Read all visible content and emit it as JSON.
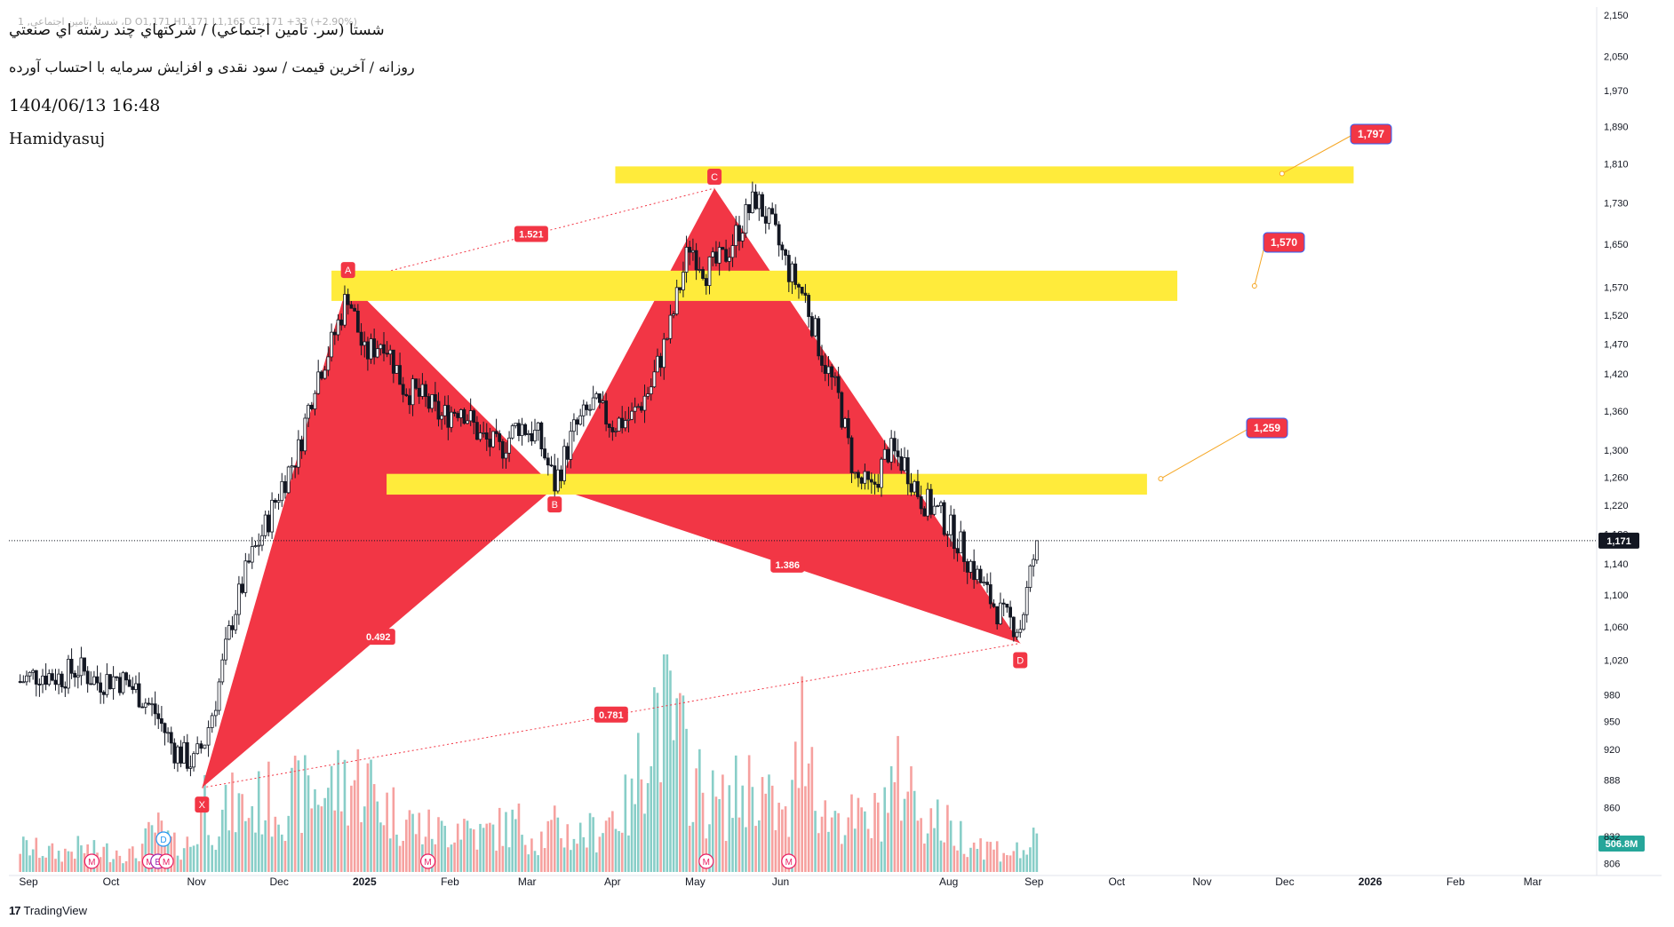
{
  "header": {
    "ohlc_line": "1 ,شستا ,تامین اجتماعی ،D O1,171 H1,171 L1,165 C1,171 +33 (+2.90%)",
    "symbol_title": "شستا (سر. تامين اجتماعي) / شركتهاي چند رشته اي صنعتي",
    "subtitle": "روزانه / آخرین قیمت / سود نقدی و افزایش سرمایه با احتساب آورده",
    "datetime": "1404/06/13 16:48",
    "author": "Hamidyasuj"
  },
  "branding": {
    "name": "TradingView",
    "logo_text": "17"
  },
  "colors": {
    "pattern_fill": "#f23645",
    "zone_fill": "#ffeb3b",
    "candle": "#131722",
    "vol_up": "#26a69a",
    "vol_down": "#ef5350",
    "price_tag": "#131722",
    "volume_tag": "#26a69a"
  },
  "chart_data": {
    "type": "candlestick",
    "x_axis_labels": [
      "Sep",
      "Oct",
      "Nov",
      "Dec",
      "2025",
      "Feb",
      "Mar",
      "Apr",
      "May",
      "Jun",
      "Aug",
      "Sep",
      "Oct",
      "Nov",
      "Dec",
      "2026",
      "Feb",
      "Mar"
    ],
    "y_axis": {
      "scale": "log",
      "ticks": [
        806,
        832,
        860,
        888,
        920,
        950,
        980,
        1020,
        1060,
        1100,
        1140,
        1180,
        1220,
        1260,
        1300,
        1360,
        1420,
        1470,
        1520,
        1570,
        1650,
        1730,
        1810,
        1890,
        1970,
        2050,
        2150
      ],
      "tick_labels": [
        "806",
        "832",
        "860",
        "888",
        "920",
        "950",
        "980",
        "1,020",
        "1,060",
        "1,100",
        "1,140",
        "1,180",
        "1,220",
        "1,260",
        "1,300",
        "1,360",
        "1,420",
        "1,470",
        "1,520",
        "1,570",
        "1,650",
        "1,730",
        "1,810",
        "1,890",
        "1,970",
        "2,050",
        "2,150"
      ],
      "range": [
        800,
        2170
      ]
    },
    "last_price": {
      "value": 1171,
      "label": "1,171"
    },
    "last_volume": {
      "label": "506.8M"
    },
    "harmonic_pattern": {
      "points": [
        {
          "label": "X",
          "date": "2024-11-03",
          "price": 880
        },
        {
          "label": "A",
          "date": "2024-12-26",
          "price": 1580
        },
        {
          "label": "B",
          "date": "2025-03-11",
          "price": 1245
        },
        {
          "label": "C",
          "date": "2025-05-08",
          "price": 1760
        },
        {
          "label": "D",
          "date": "2025-08-27",
          "price": 1040
        }
      ],
      "ratios": [
        {
          "label": "1.521",
          "between": "A-C"
        },
        {
          "label": "0.492",
          "between": "X-B"
        },
        {
          "label": "1.386",
          "between": "B-D"
        },
        {
          "label": "0.781",
          "between": "X-D"
        }
      ]
    },
    "zones": [
      {
        "low": 1545,
        "high": 1600,
        "target": 1570,
        "label": "1,570"
      },
      {
        "low": 1235,
        "high": 1265,
        "target": 1259,
        "label": "1,259"
      },
      {
        "low": 1770,
        "high": 1805,
        "target": 1797,
        "label": "1,797"
      }
    ],
    "event_markers": [
      {
        "date": "2024-09-24",
        "label": "M"
      },
      {
        "date": "2024-10-15",
        "label": "M"
      },
      {
        "date": "2024-10-18",
        "label": "E"
      },
      {
        "date": "2024-10-20",
        "label": "D"
      },
      {
        "date": "2024-10-21",
        "label": "M"
      },
      {
        "date": "2025-01-24",
        "label": "M"
      },
      {
        "date": "2025-05-05",
        "label": "M"
      },
      {
        "date": "2025-06-04",
        "label": "M"
      }
    ],
    "series": [
      {
        "type": "ohlc",
        "x": [
          "2024-08-29",
          "2024-09-05",
          "2024-09-12",
          "2024-09-19",
          "2024-09-26",
          "2024-10-03",
          "2024-10-10",
          "2024-10-17",
          "2024-10-24",
          "2024-10-31",
          "2024-11-04",
          "2024-11-08",
          "2024-11-14",
          "2024-11-20",
          "2024-11-26",
          "2024-12-02",
          "2024-12-08",
          "2024-12-14",
          "2024-12-20",
          "2024-12-26",
          "2025-01-01",
          "2025-01-08",
          "2025-01-15",
          "2025-01-22",
          "2025-01-29",
          "2025-02-05",
          "2025-02-12",
          "2025-02-19",
          "2025-02-26",
          "2025-03-05",
          "2025-03-11",
          "2025-03-18",
          "2025-03-25",
          "2025-04-01",
          "2025-04-08",
          "2025-04-15",
          "2025-04-22",
          "2025-04-29",
          "2025-05-05",
          "2025-05-11",
          "2025-05-17",
          "2025-05-23",
          "2025-05-29",
          "2025-06-04",
          "2025-06-10",
          "2025-06-16",
          "2025-06-22",
          "2025-06-28",
          "2025-07-04",
          "2025-07-10",
          "2025-07-16",
          "2025-07-22",
          "2025-07-28",
          "2025-08-03",
          "2025-08-09",
          "2025-08-15",
          "2025-08-21",
          "2025-08-27",
          "2025-09-02"
        ],
        "close": [
          995,
          1005,
          1000,
          1010,
          995,
          1000,
          985,
          960,
          920,
          905,
          930,
          975,
          1070,
          1140,
          1190,
          1250,
          1300,
          1410,
          1470,
          1560,
          1450,
          1480,
          1400,
          1380,
          1350,
          1370,
          1320,
          1300,
          1340,
          1320,
          1250,
          1330,
          1370,
          1340,
          1350,
          1400,
          1500,
          1650,
          1600,
          1620,
          1680,
          1740,
          1680,
          1600,
          1550,
          1450,
          1380,
          1260,
          1240,
          1300,
          1280,
          1230,
          1210,
          1180,
          1140,
          1100,
          1070,
          1060,
          1171
        ]
      },
      {
        "type": "volume",
        "values": [
          70,
          60,
          50,
          65,
          55,
          60,
          45,
          120,
          70,
          80,
          210,
          130,
          180,
          170,
          200,
          190,
          210,
          220,
          230,
          250,
          260,
          180,
          150,
          120,
          110,
          140,
          100,
          120,
          130,
          90,
          120,
          100,
          110,
          160,
          180,
          450,
          420,
          280,
          200,
          180,
          220,
          250,
          170,
          130,
          460,
          150,
          160,
          140,
          130,
          220,
          260,
          170,
          140,
          110,
          90,
          70,
          60,
          55,
          85
        ]
      }
    ]
  }
}
